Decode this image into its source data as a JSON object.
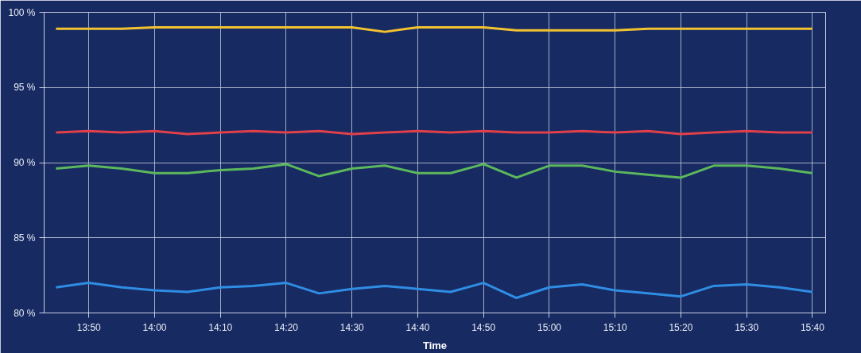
{
  "chart_data": {
    "type": "line",
    "xlabel": "Time",
    "x": [
      13.75,
      13.8333,
      13.9167,
      14,
      14.0833,
      14.1667,
      14.25,
      14.3333,
      14.4167,
      14.5,
      14.5833,
      14.6667,
      14.75,
      14.8333,
      14.9167,
      15,
      15.0833,
      15.1667,
      15.25,
      15.3333,
      15.4167,
      15.5,
      15.5833,
      15.6667
    ],
    "series": [
      {
        "color": "#f2c230",
        "values": [
          98.9,
          98.9,
          98.9,
          99.0,
          99.0,
          99.0,
          99.0,
          99.0,
          99.0,
          99.0,
          98.7,
          99.0,
          99.0,
          99.0,
          98.8,
          98.8,
          98.8,
          98.8,
          98.9,
          98.9,
          98.9,
          98.9,
          98.9,
          98.9
        ]
      },
      {
        "color": "#e0404a",
        "values": [
          92.0,
          92.1,
          92.0,
          92.1,
          91.9,
          92.0,
          92.1,
          92.0,
          92.1,
          91.9,
          92.0,
          92.1,
          92.0,
          92.1,
          92.0,
          92.0,
          92.1,
          92.0,
          92.1,
          91.9,
          92.0,
          92.1,
          92.0,
          92.0
        ]
      },
      {
        "color": "#5cb85c",
        "values": [
          89.6,
          89.8,
          89.6,
          89.3,
          89.3,
          89.5,
          89.6,
          89.9,
          89.1,
          89.6,
          89.8,
          89.3,
          89.3,
          89.9,
          89.0,
          89.8,
          89.8,
          89.4,
          89.2,
          89.0,
          89.8,
          89.8,
          89.6,
          89.3
        ]
      },
      {
        "color": "#2f8de4",
        "values": [
          81.7,
          82.0,
          81.7,
          81.5,
          81.4,
          81.7,
          81.8,
          82.0,
          81.3,
          81.6,
          81.8,
          81.6,
          81.4,
          82.0,
          81.0,
          81.7,
          81.9,
          81.5,
          81.3,
          81.1,
          81.8,
          81.9,
          81.7,
          81.4
        ]
      }
    ],
    "xlim": [
      13.72,
      15.7
    ],
    "xticks": [
      {
        "value": 13.8333,
        "label": "13:50"
      },
      {
        "value": 14,
        "label": "14:00"
      },
      {
        "value": 14.1667,
        "label": "14:10"
      },
      {
        "value": 14.3333,
        "label": "14:20"
      },
      {
        "value": 14.5,
        "label": "14:30"
      },
      {
        "value": 14.6667,
        "label": "14:40"
      },
      {
        "value": 14.8333,
        "label": "14:50"
      },
      {
        "value": 15,
        "label": "15:00"
      },
      {
        "value": 15.1667,
        "label": "15:10"
      },
      {
        "value": 15.3333,
        "label": "15:20"
      },
      {
        "value": 15.5,
        "label": "15:30"
      },
      {
        "value": 15.6667,
        "label": "15:40"
      }
    ],
    "ylim": [
      80,
      100
    ],
    "yticks": [
      {
        "value": 80,
        "label": "80 %"
      },
      {
        "value": 85,
        "label": "85 %"
      },
      {
        "value": 90,
        "label": "90 %"
      },
      {
        "value": 95,
        "label": "95 %"
      },
      {
        "value": 100,
        "label": "100 %"
      }
    ],
    "grid": true,
    "marker": "none",
    "line_style": "solid"
  }
}
